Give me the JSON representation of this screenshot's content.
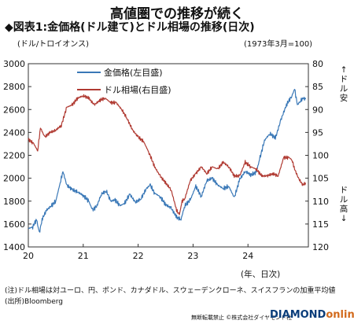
{
  "header": {
    "title": "高値圏での推移が続く",
    "subtitle": "◆図表1:金価格(ドル建て)とドル相場の推移(日次)"
  },
  "units": {
    "left": "(ドル/トロイオンス)",
    "right": "(1973年3月=100)",
    "x": "(年、日次)"
  },
  "side_labels": {
    "dollar_strong": "↑ドル安",
    "dollar_weak": "ドル高↓"
  },
  "notes": {
    "note_1": "(注)ドル相場は対ユーロ、円、ポンド、カナダドル、スウェーデンクローネ、スイスフランの加重平均値",
    "source": "(出所)Bloomberg"
  },
  "footer": {
    "copyright": "無断転載禁止 ©株式会社ダイヤモンド社",
    "brand_1": "DIAMOND",
    "brand_2": "online"
  },
  "colors": {
    "gold": "#3a78b7",
    "dollar": "#b03a32"
  },
  "chart_data": {
    "type": "line",
    "x_ticks": [
      "20",
      "21",
      "22",
      "23",
      "24"
    ],
    "x_range": [
      2020.0,
      2025.1
    ],
    "left_ylim": [
      1400,
      3000
    ],
    "left_ticks": [
      1400,
      1600,
      1800,
      2000,
      2200,
      2400,
      2600,
      2800,
      3000
    ],
    "right_ylim": [
      80,
      120
    ],
    "right_inverted": true,
    "right_ticks": [
      80,
      85,
      90,
      95,
      100,
      105,
      110,
      115,
      120
    ],
    "grid": false,
    "legend_position": "top-left",
    "series": [
      {
        "name": "金価格(左目盛)",
        "axis": "left",
        "x": [
          2020.0,
          2020.08,
          2020.15,
          2020.2,
          2020.25,
          2020.33,
          2020.42,
          2020.5,
          2020.58,
          2020.63,
          2020.7,
          2020.8,
          2020.9,
          2021.0,
          2021.1,
          2021.17,
          2021.25,
          2021.33,
          2021.42,
          2021.5,
          2021.58,
          2021.67,
          2021.75,
          2021.85,
          2021.95,
          2022.05,
          2022.15,
          2022.22,
          2022.3,
          2022.4,
          2022.5,
          2022.6,
          2022.7,
          2022.78,
          2022.85,
          2022.95,
          2023.05,
          2023.15,
          2023.25,
          2023.35,
          2023.45,
          2023.55,
          2023.65,
          2023.75,
          2023.85,
          2023.95,
          2024.05,
          2024.15,
          2024.22,
          2024.3,
          2024.4,
          2024.5,
          2024.6,
          2024.7,
          2024.8,
          2024.85,
          2024.9,
          2024.95,
          2025.0,
          2025.05
        ],
        "values": [
          1560,
          1575,
          1640,
          1520,
          1640,
          1720,
          1760,
          1800,
          1960,
          2060,
          1940,
          1900,
          1880,
          1850,
          1800,
          1720,
          1760,
          1860,
          1890,
          1800,
          1810,
          1760,
          1780,
          1860,
          1790,
          1820,
          1910,
          1940,
          1870,
          1840,
          1770,
          1740,
          1660,
          1640,
          1760,
          1810,
          1930,
          1840,
          1980,
          2000,
          1940,
          1910,
          1930,
          1830,
          1990,
          2060,
          2030,
          2050,
          2180,
          2330,
          2390,
          2350,
          2510,
          2640,
          2720,
          2780,
          2640,
          2670,
          2700,
          2690
        ]
      },
      {
        "name": "ドル相場(右目盛)",
        "axis": "right",
        "x": [
          2020.0,
          2020.1,
          2020.17,
          2020.22,
          2020.3,
          2020.4,
          2020.5,
          2020.6,
          2020.7,
          2020.8,
          2020.9,
          2021.0,
          2021.1,
          2021.2,
          2021.3,
          2021.4,
          2021.5,
          2021.6,
          2021.7,
          2021.8,
          2021.9,
          2022.0,
          2022.1,
          2022.2,
          2022.3,
          2022.4,
          2022.5,
          2022.6,
          2022.7,
          2022.75,
          2022.8,
          2022.85,
          2022.95,
          2023.05,
          2023.15,
          2023.25,
          2023.35,
          2023.45,
          2023.55,
          2023.65,
          2023.75,
          2023.85,
          2023.95,
          2024.05,
          2024.15,
          2024.25,
          2024.35,
          2024.45,
          2024.55,
          2024.65,
          2024.75,
          2024.8,
          2024.85,
          2024.92,
          2025.0,
          2025.05
        ],
        "values": [
          96.5,
          97.5,
          99.0,
          94.0,
          96.0,
          95.0,
          94.5,
          93.5,
          89.5,
          89.0,
          87.5,
          87.0,
          87.5,
          89.0,
          88.0,
          87.5,
          88.5,
          88.5,
          90.0,
          92.0,
          94.5,
          96.0,
          97.0,
          99.5,
          102.5,
          104.5,
          106.0,
          107.5,
          112.0,
          113.0,
          110.0,
          109.5,
          105.5,
          104.0,
          102.5,
          104.0,
          102.5,
          103.0,
          101.5,
          102.5,
          104.5,
          104.5,
          101.5,
          102.5,
          103.0,
          104.5,
          104.5,
          104.0,
          104.5,
          100.5,
          100.5,
          101.0,
          103.0,
          105.0,
          106.5,
          106.0
        ]
      }
    ]
  }
}
